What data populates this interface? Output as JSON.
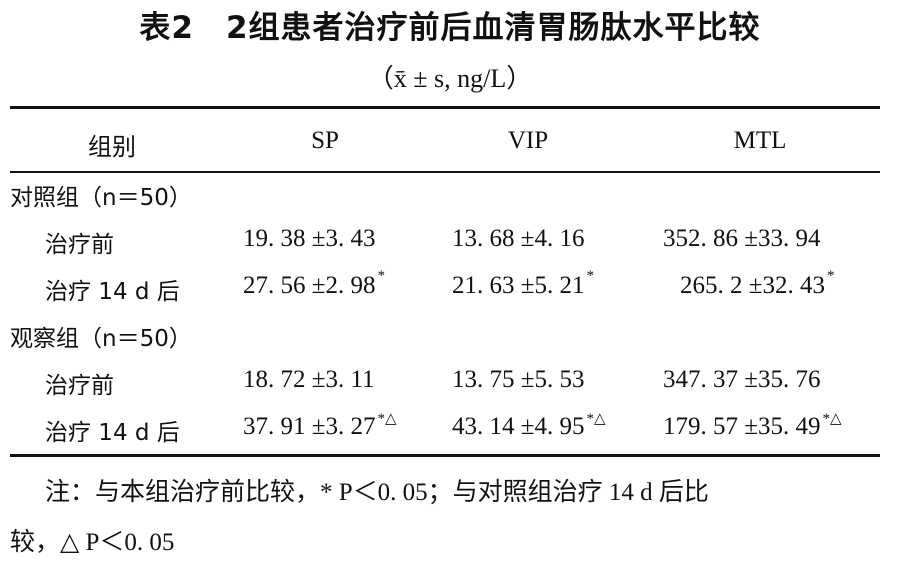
{
  "title": "表2　2组患者治疗前后血清胃肠肽水平比较",
  "subtitle": "（x̄ ± s, ng/L）",
  "headers": [
    "组别",
    "SP",
    "VIP",
    "MTL"
  ],
  "groups": [
    {
      "label": "对照组（n＝50）",
      "rows": [
        {
          "label": "治疗前",
          "values": [
            {
              "v": "19. 38 ±3. 43",
              "mark": ""
            },
            {
              "v": "13. 68 ±4. 16",
              "mark": ""
            },
            {
              "v": "352. 86 ±33. 94",
              "mark": ""
            }
          ]
        },
        {
          "label": "治疗 14 d 后",
          "values": [
            {
              "v": "27. 56 ±2. 98",
              "mark": "*"
            },
            {
              "v": "21. 63 ±5. 21",
              "mark": "*"
            },
            {
              "v": "265. 2 ±32. 43",
              "mark": "*"
            }
          ]
        }
      ]
    },
    {
      "label": "观察组（n＝50）",
      "rows": [
        {
          "label": "治疗前",
          "values": [
            {
              "v": "18. 72 ±3. 11",
              "mark": ""
            },
            {
              "v": "13. 75 ±5. 53",
              "mark": ""
            },
            {
              "v": "347. 37 ±35. 76",
              "mark": ""
            }
          ]
        },
        {
          "label": "治疗 14 d 后",
          "values": [
            {
              "v": "37. 91 ±3. 27",
              "mark": "*△"
            },
            {
              "v": "43. 14 ±4. 95",
              "mark": "*△"
            },
            {
              "v": "179. 57 ±35. 49",
              "mark": "*△"
            }
          ]
        }
      ]
    }
  ],
  "note": {
    "line1": "注：与本组治疗前比较，* P＜0. 05；与对照组治疗 14 d 后比",
    "line2": "较，△ P＜0. 05"
  }
}
